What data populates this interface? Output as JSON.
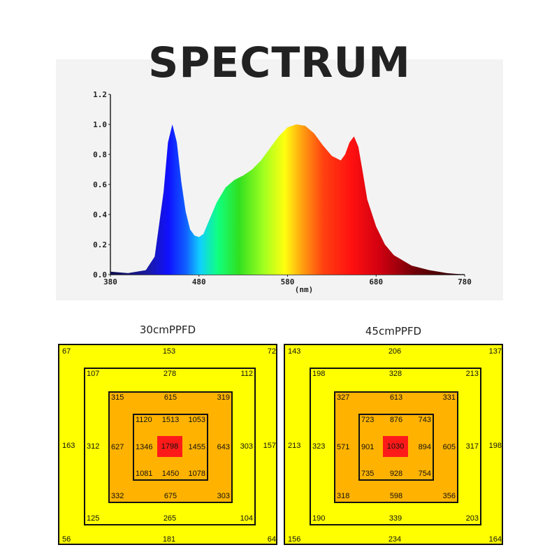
{
  "title": "SPECTRUM",
  "chart_data": [
    {
      "type": "area",
      "x_ticks": [
        "380",
        "480",
        "580",
        "680",
        "780"
      ],
      "y_ticks": [
        "0.0",
        "0.2",
        "0.4",
        "0.6",
        "0.8",
        "1.0",
        "1.2"
      ],
      "xlabel": "(nm)",
      "xlim": [
        380,
        780
      ],
      "ylim": [
        0,
        1.2
      ],
      "x": [
        380,
        400,
        420,
        430,
        440,
        445,
        450,
        455,
        460,
        465,
        470,
        475,
        480,
        485,
        490,
        500,
        510,
        520,
        530,
        540,
        550,
        560,
        570,
        580,
        590,
        600,
        610,
        620,
        630,
        640,
        645,
        650,
        655,
        660,
        665,
        670,
        680,
        690,
        700,
        720,
        740,
        760,
        780
      ],
      "y": [
        0.02,
        0.01,
        0.03,
        0.12,
        0.55,
        0.88,
        1.0,
        0.88,
        0.62,
        0.42,
        0.3,
        0.26,
        0.25,
        0.27,
        0.34,
        0.48,
        0.58,
        0.63,
        0.66,
        0.7,
        0.76,
        0.84,
        0.92,
        0.98,
        1.0,
        0.99,
        0.94,
        0.86,
        0.79,
        0.76,
        0.8,
        0.88,
        0.92,
        0.85,
        0.68,
        0.5,
        0.32,
        0.2,
        0.13,
        0.06,
        0.03,
        0.01,
        0.0
      ]
    },
    {
      "type": "table",
      "title": "30cmPPFD",
      "rings": [
        {
          "corners": [
            "67",
            "72",
            "56",
            "64"
          ],
          "top": "153",
          "bottom": "181",
          "left": "163",
          "right": "157"
        },
        {
          "corners": [
            "107",
            "112",
            "125",
            "104"
          ],
          "top": "278",
          "bottom": "265",
          "left": "312",
          "right": "303"
        },
        {
          "corners": [
            "315",
            "319",
            "332",
            "303"
          ],
          "top": "615",
          "bottom": "675",
          "left": "627",
          "right": "643"
        },
        {
          "corners": [
            "1120",
            "1053",
            "1081",
            "1078"
          ],
          "top": "1513",
          "bottom": "1450",
          "left": "1346",
          "right": "1455"
        }
      ],
      "center": "1798"
    },
    {
      "type": "table",
      "title": "45cmPPFD",
      "rings": [
        {
          "corners": [
            "143",
            "137",
            "156",
            "164"
          ],
          "top": "206",
          "bottom": "234",
          "left": "213",
          "right": "198"
        },
        {
          "corners": [
            "198",
            "213",
            "190",
            "203"
          ],
          "top": "328",
          "bottom": "339",
          "left": "323",
          "right": "317"
        },
        {
          "corners": [
            "327",
            "331",
            "318",
            "356"
          ],
          "top": "613",
          "bottom": "598",
          "left": "571",
          "right": "605"
        },
        {
          "corners": [
            "723",
            "743",
            "735",
            "754"
          ],
          "top": "876",
          "bottom": "928",
          "left": "901",
          "right": "894"
        }
      ],
      "center": "1030"
    }
  ]
}
